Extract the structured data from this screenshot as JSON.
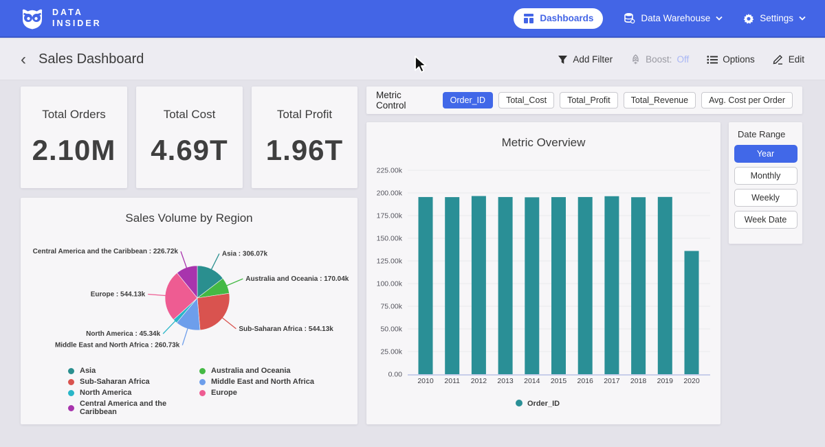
{
  "colors": {
    "navbar": "#4365e6",
    "accent": "#4168e8",
    "bar_teal": "#2a8f96",
    "boost_off": "#a8b6f5"
  },
  "navbar": {
    "brand": {
      "line1": "DATA",
      "line2": "INSIDER"
    },
    "items": [
      {
        "label": "Dashboards",
        "icon": "dashboard-grid-icon",
        "active": true
      },
      {
        "label": "Data Warehouse",
        "icon": "database-icon",
        "dropdown": true
      },
      {
        "label": "Settings",
        "icon": "gear-icon",
        "dropdown": true
      }
    ]
  },
  "header": {
    "title": "Sales Dashboard",
    "actions": [
      {
        "label": "Add Filter",
        "icon": "filter-icon"
      },
      {
        "label": "Boost:",
        "value": "Off",
        "icon": "rocket-icon"
      },
      {
        "label": "Options",
        "icon": "options-list-icon"
      },
      {
        "label": "Edit",
        "icon": "edit-pencil-icon"
      }
    ]
  },
  "kpis": [
    {
      "label": "Total Orders",
      "value": "2.10M"
    },
    {
      "label": "Total Cost",
      "value": "4.69T"
    },
    {
      "label": "Total Profit",
      "value": "1.96T"
    }
  ],
  "metric_control": {
    "label": "Metric Control",
    "options": [
      {
        "label": "Order_ID",
        "selected": true
      },
      {
        "label": "Total_Cost",
        "selected": false
      },
      {
        "label": "Total_Profit",
        "selected": false
      },
      {
        "label": "Total_Revenue",
        "selected": false
      },
      {
        "label": "Avg. Cost per Order",
        "selected": false
      }
    ]
  },
  "date_range": {
    "label": "Date Range",
    "options": [
      {
        "label": "Year",
        "selected": true
      },
      {
        "label": "Monthly",
        "selected": false
      },
      {
        "label": "Weekly",
        "selected": false
      },
      {
        "label": "Week Date",
        "selected": false
      }
    ]
  },
  "chart_data": [
    {
      "type": "bar",
      "title": "Metric Overview",
      "categories": [
        "2010",
        "2011",
        "2012",
        "2013",
        "2014",
        "2015",
        "2016",
        "2017",
        "2018",
        "2019",
        "2020"
      ],
      "series": [
        {
          "name": "Order_ID",
          "color": "#2a8f96",
          "values": [
            195500,
            195400,
            196600,
            195500,
            195200,
            195400,
            195500,
            196400,
            195300,
            195600,
            136000
          ]
        }
      ],
      "xlabel": "",
      "ylabel": "",
      "ylim": [
        0,
        225000
      ],
      "ytick_step": 25000,
      "ytick_labels": [
        "0.00",
        "25.00k",
        "50.00k",
        "75.00k",
        "100.00k",
        "125.00k",
        "150.00k",
        "175.00k",
        "200.00k",
        "225.00k"
      ],
      "grid": true,
      "legend_position": "bottom"
    },
    {
      "type": "pie",
      "title": "Sales Volume by Region",
      "slices": [
        {
          "label": "Asia",
          "value": 306070,
          "display": "306.07k",
          "color": "#2a8f8f"
        },
        {
          "label": "Australia and Oceania",
          "value": 170040,
          "display": "170.04k",
          "color": "#44b944"
        },
        {
          "label": "Sub-Saharan Africa",
          "value": 544130,
          "display": "544.13k",
          "color": "#d9534f"
        },
        {
          "label": "Middle East and North Africa",
          "value": 260730,
          "display": "260.73k",
          "color": "#6d9eeb"
        },
        {
          "label": "North America",
          "value": 45340,
          "display": "45.34k",
          "color": "#29b6c8"
        },
        {
          "label": "Europe",
          "value": 544130,
          "display": "544.13k",
          "color": "#ee5c92"
        },
        {
          "label": "Central America and the Caribbean",
          "value": 226720,
          "display": "226.72k",
          "color": "#a834ad"
        }
      ],
      "label_format": "{label} : {display}",
      "legend_position": "bottom"
    }
  ]
}
